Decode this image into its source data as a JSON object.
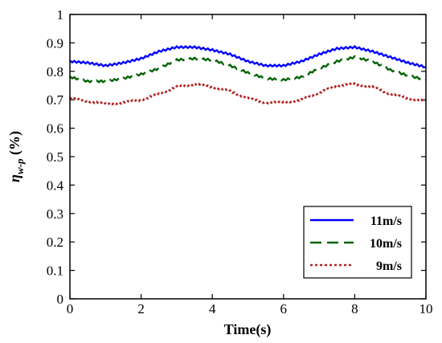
{
  "chart_data": {
    "type": "line",
    "title": "",
    "xlabel": "Time(s)",
    "ylabel_main": "η",
    "ylabel_sub": "w-p",
    "ylabel_unit": " (%)",
    "xlim": [
      0,
      10
    ],
    "ylim": [
      0,
      1
    ],
    "xticks": [
      "0",
      "2",
      "4",
      "6",
      "8",
      "10"
    ],
    "yticks": [
      "0",
      "0.1",
      "0.2",
      "0.3",
      "0.4",
      "0.5",
      "0.6",
      "0.7",
      "0.8",
      "0.9",
      "1"
    ],
    "grid": false,
    "legend_position": "bottom-right",
    "x": [
      0,
      0.5,
      1.0,
      1.5,
      2.0,
      2.5,
      3.0,
      3.5,
      4.0,
      4.5,
      5.0,
      5.5,
      6.0,
      6.5,
      7.0,
      7.5,
      8.0,
      8.5,
      9.0,
      9.5,
      10.0
    ],
    "series": [
      {
        "name": "11m/s",
        "color": "#0000ff",
        "style": "solid",
        "values": [
          0.835,
          0.83,
          0.82,
          0.83,
          0.845,
          0.87,
          0.885,
          0.885,
          0.875,
          0.86,
          0.835,
          0.82,
          0.82,
          0.835,
          0.86,
          0.88,
          0.885,
          0.87,
          0.85,
          0.83,
          0.815
        ]
      },
      {
        "name": "10m/s",
        "color": "#006400",
        "style": "dashed",
        "values": [
          0.78,
          0.765,
          0.765,
          0.775,
          0.79,
          0.81,
          0.84,
          0.845,
          0.84,
          0.82,
          0.795,
          0.775,
          0.77,
          0.78,
          0.81,
          0.835,
          0.85,
          0.835,
          0.805,
          0.785,
          0.77
        ]
      },
      {
        "name": "9m/s",
        "color": "#b22222",
        "style": "dotted",
        "values": [
          0.705,
          0.695,
          0.685,
          0.69,
          0.7,
          0.72,
          0.745,
          0.755,
          0.745,
          0.73,
          0.705,
          0.69,
          0.69,
          0.7,
          0.725,
          0.75,
          0.755,
          0.745,
          0.72,
          0.705,
          0.695
        ]
      }
    ]
  }
}
